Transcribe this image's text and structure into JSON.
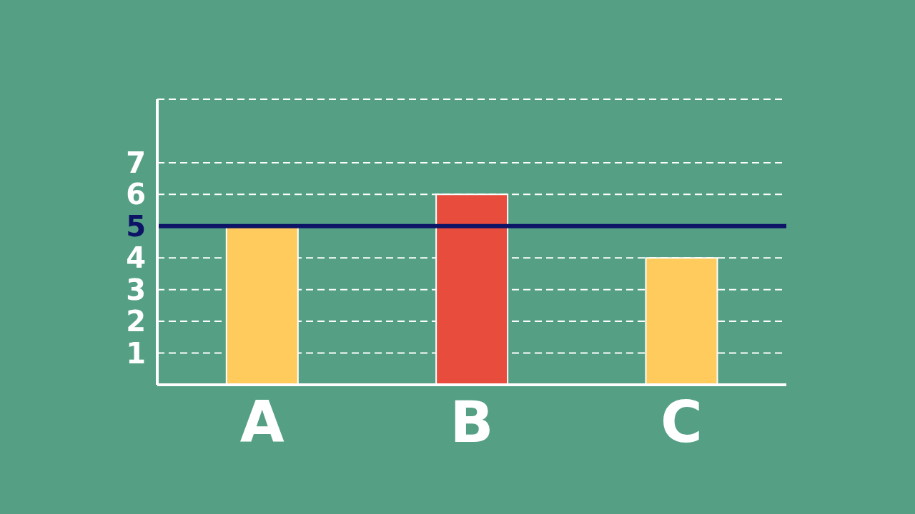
{
  "chart_data": {
    "type": "bar",
    "categories": [
      "A",
      "B",
      "C"
    ],
    "values": [
      5,
      6,
      4
    ],
    "colors": [
      "#fecb5c",
      "#e74c3c",
      "#fecb5c"
    ],
    "ylim": [
      0,
      9
    ],
    "yticks": [
      1,
      2,
      3,
      4,
      5,
      6,
      7
    ],
    "grid": "y",
    "ref_lines": [
      {
        "axis": "y",
        "value": 5,
        "color": "#0d1466",
        "line_style": "solid"
      }
    ]
  }
}
